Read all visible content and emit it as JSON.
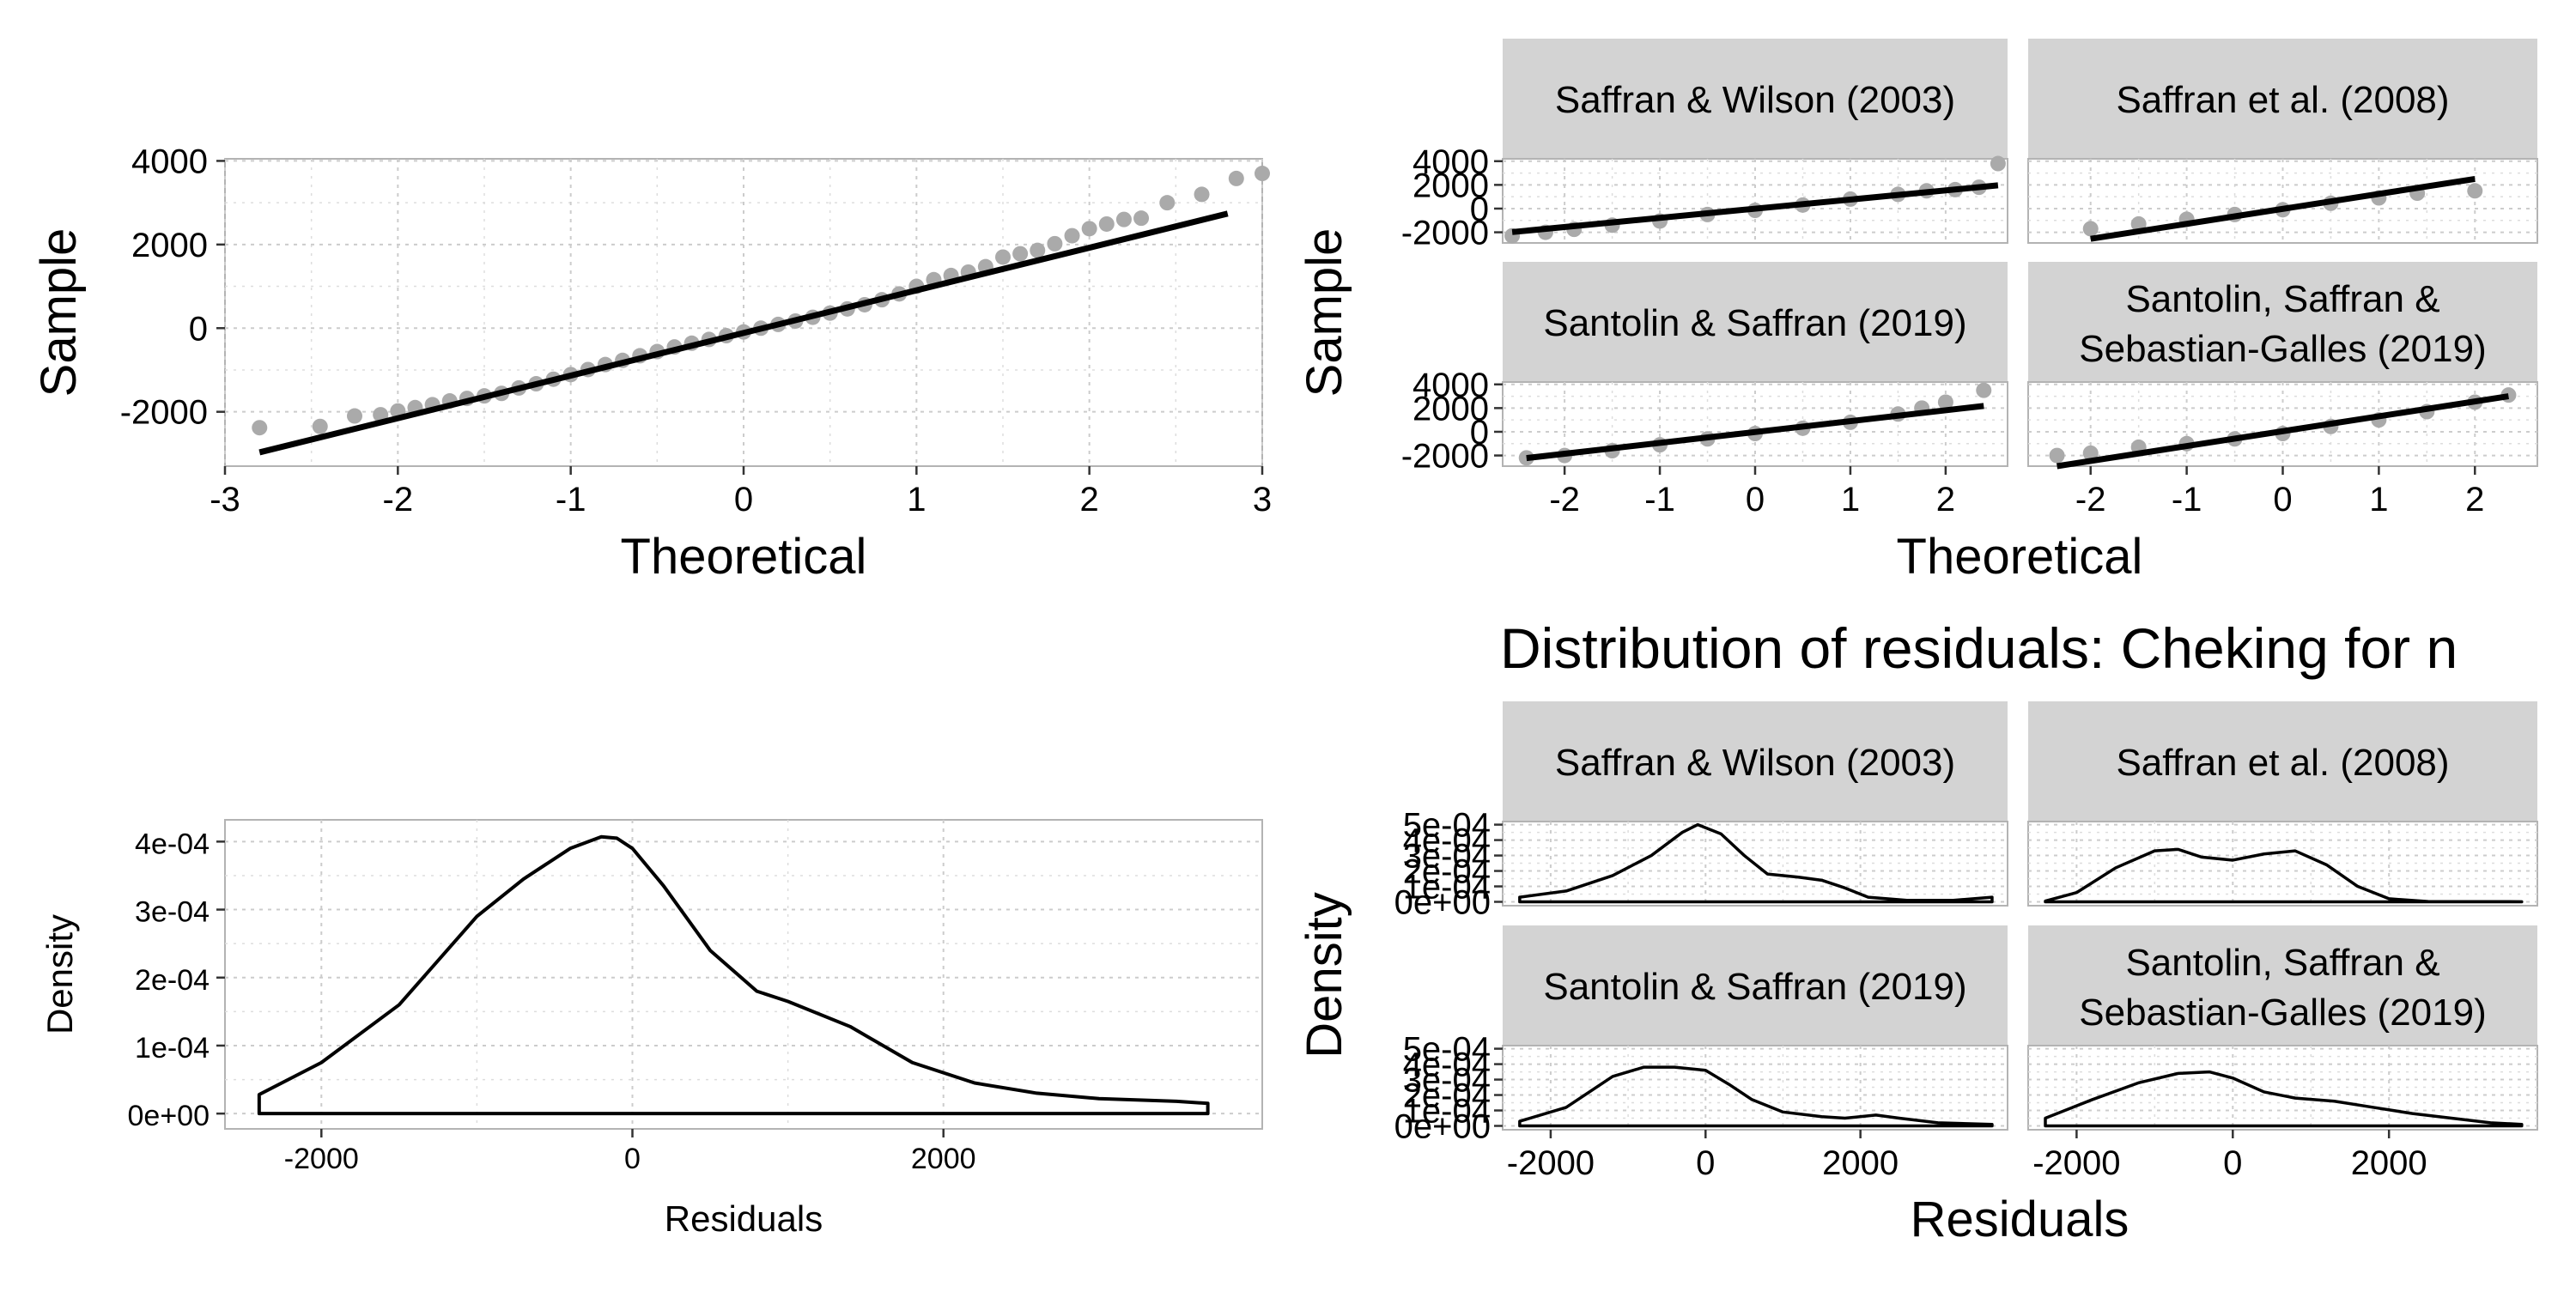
{
  "chart_data": [
    {
      "id": "qq_pooled",
      "type": "scatter",
      "xlabel": "Theoretical",
      "ylabel": "Sample",
      "xlim": [
        -3.0,
        3.0
      ],
      "ylim": [
        -3300,
        4050
      ],
      "xticks": [
        -3,
        -2,
        -1,
        0,
        1,
        2,
        3
      ],
      "yticks": [
        -2000,
        0,
        2000,
        4000
      ],
      "point_color": "#aaaaaa",
      "line_color": "#000000",
      "line": {
        "x": [
          -2.8,
          2.8
        ],
        "y": [
          -2970,
          2740
        ]
      },
      "points": [
        [
          -2.8,
          -2380
        ],
        [
          -2.45,
          -2350
        ],
        [
          -2.25,
          -2100
        ],
        [
          -2.1,
          -2070
        ],
        [
          -2.0,
          -1980
        ],
        [
          -1.9,
          -1900
        ],
        [
          -1.8,
          -1830
        ],
        [
          -1.7,
          -1740
        ],
        [
          -1.6,
          -1680
        ],
        [
          -1.5,
          -1620
        ],
        [
          -1.4,
          -1560
        ],
        [
          -1.3,
          -1430
        ],
        [
          -1.2,
          -1330
        ],
        [
          -1.1,
          -1220
        ],
        [
          -1.0,
          -1110
        ],
        [
          -0.9,
          -990
        ],
        [
          -0.8,
          -870
        ],
        [
          -0.7,
          -770
        ],
        [
          -0.6,
          -660
        ],
        [
          -0.5,
          -560
        ],
        [
          -0.4,
          -450
        ],
        [
          -0.3,
          -360
        ],
        [
          -0.2,
          -270
        ],
        [
          -0.1,
          -180
        ],
        [
          0.0,
          -90
        ],
        [
          0.1,
          0
        ],
        [
          0.2,
          90
        ],
        [
          0.3,
          170
        ],
        [
          0.4,
          260
        ],
        [
          0.5,
          360
        ],
        [
          0.6,
          460
        ],
        [
          0.7,
          560
        ],
        [
          0.8,
          680
        ],
        [
          0.9,
          820
        ],
        [
          1.0,
          1000
        ],
        [
          1.1,
          1160
        ],
        [
          1.2,
          1260
        ],
        [
          1.3,
          1340
        ],
        [
          1.4,
          1470
        ],
        [
          1.5,
          1700
        ],
        [
          1.6,
          1780
        ],
        [
          1.7,
          1860
        ],
        [
          1.8,
          2020
        ],
        [
          1.9,
          2210
        ],
        [
          2.0,
          2380
        ],
        [
          2.1,
          2490
        ],
        [
          2.2,
          2600
        ],
        [
          2.3,
          2630
        ],
        [
          2.45,
          3000
        ],
        [
          2.65,
          3200
        ],
        [
          2.85,
          3580
        ],
        [
          3.0,
          3700
        ]
      ]
    },
    {
      "id": "qq_faceted",
      "type": "scatter",
      "xlabel": "Theoretical",
      "ylabel": "Sample",
      "xlim": [
        -2.65,
        2.65
      ],
      "ylim": [
        -2900,
        4200
      ],
      "xticks": [
        -2,
        -1,
        0,
        1,
        2
      ],
      "yticks": [
        -2000,
        0,
        2000,
        4000
      ],
      "point_color": "#aaaaaa",
      "line_color": "#000000",
      "facets": [
        {
          "label": "Saffran & Wilson (2003)",
          "line": {
            "x": [
              -2.55,
              2.55
            ],
            "y": [
              -1980,
              1960
            ]
          },
          "points": [
            [
              -2.55,
              -2300
            ],
            [
              -2.2,
              -2000
            ],
            [
              -1.9,
              -1750
            ],
            [
              -1.5,
              -1400
            ],
            [
              -1.0,
              -1050
            ],
            [
              -0.5,
              -500
            ],
            [
              0,
              -150
            ],
            [
              0.5,
              300
            ],
            [
              1.0,
              800
            ],
            [
              1.5,
              1200
            ],
            [
              1.8,
              1500
            ],
            [
              2.1,
              1600
            ],
            [
              2.35,
              1800
            ],
            [
              2.55,
              3800
            ]
          ]
        },
        {
          "label": "Saffran et al. (2008)",
          "line": {
            "x": [
              -2.0,
              2.0
            ],
            "y": [
              -2550,
              2500
            ]
          },
          "points": [
            [
              -2.0,
              -1700
            ],
            [
              -1.5,
              -1300
            ],
            [
              -1.0,
              -900
            ],
            [
              -0.5,
              -500
            ],
            [
              0,
              -100
            ],
            [
              0.5,
              450
            ],
            [
              1.0,
              900
            ],
            [
              1.4,
              1300
            ],
            [
              2.0,
              1500
            ]
          ]
        },
        {
          "label": "Santolin & Saffran (2019)",
          "line": {
            "x": [
              -2.4,
              2.4
            ],
            "y": [
              -2220,
              2180
            ]
          },
          "points": [
            [
              -2.4,
              -2200
            ],
            [
              -2.0,
              -2000
            ],
            [
              -1.5,
              -1600
            ],
            [
              -1.0,
              -1100
            ],
            [
              -0.5,
              -600
            ],
            [
              0,
              -150
            ],
            [
              0.5,
              300
            ],
            [
              1.0,
              800
            ],
            [
              1.5,
              1500
            ],
            [
              1.75,
              2000
            ],
            [
              2.0,
              2500
            ],
            [
              2.4,
              3500
            ]
          ]
        },
        {
          "label": "Santolin, Saffran & Sebastian-Galles (2019)",
          "line": {
            "x": [
              -2.35,
              2.35
            ],
            "y": [
              -2900,
              3000
            ]
          },
          "points": [
            [
              -2.35,
              -2000
            ],
            [
              -2.0,
              -1800
            ],
            [
              -1.5,
              -1300
            ],
            [
              -1.0,
              -1000
            ],
            [
              -0.5,
              -600
            ],
            [
              0,
              -150
            ],
            [
              0.5,
              450
            ],
            [
              1.0,
              1000
            ],
            [
              1.5,
              1700
            ],
            [
              2.0,
              2500
            ],
            [
              2.35,
              3100
            ]
          ]
        }
      ]
    },
    {
      "id": "density_pooled",
      "type": "area",
      "xlabel": "Residuals",
      "ylabel": "Density",
      "xlim": [
        -2620,
        4050
      ],
      "ylim": [
        -2.25e-05,
        0.000432
      ],
      "xticks": [
        -2000,
        0,
        2000
      ],
      "yticks": [
        0,
        0.0001,
        0.0002,
        0.0003,
        0.0004
      ],
      "ytick_labels": [
        "0e+00",
        "1e-04",
        "2e-04",
        "3e-04",
        "4e-04"
      ],
      "x": [
        -2400,
        -2000,
        -1500,
        -1000,
        -700,
        -400,
        -200,
        -100,
        0,
        200,
        500,
        800,
        1000,
        1400,
        1800,
        2200,
        2600,
        3000,
        3500,
        3700
      ],
      "y": [
        2.8e-05,
        7.5e-05,
        0.00016,
        0.00029,
        0.000345,
        0.00039,
        0.000407,
        0.000405,
        0.00039,
        0.000335,
        0.00024,
        0.00018,
        0.000165,
        0.000128,
        7.5e-05,
        4.5e-05,
        3e-05,
        2.2e-05,
        1.8e-05,
        1.5e-05
      ]
    },
    {
      "id": "density_faceted",
      "type": "line",
      "title": "Distribution of residuals: Cheking for n",
      "xlabel": "Residuals",
      "ylabel": "Density",
      "xlim": [
        -2620,
        3900
      ],
      "ylim": [
        -2.5e-05,
        0.00052
      ],
      "xticks": [
        -2000,
        0,
        2000
      ],
      "yticks": [
        0,
        0.0001,
        0.0002,
        0.0003,
        0.0004,
        0.0005
      ],
      "ytick_labels": [
        "0e+00",
        "1e-04",
        "2e-04",
        "3e-04",
        "4e-04",
        "5e-04"
      ],
      "facets": [
        {
          "label": "Saffran & Wilson (2003)",
          "x": [
            -2400,
            -1800,
            -1200,
            -700,
            -300,
            -100,
            200,
            500,
            800,
            1200,
            1500,
            1800,
            2100,
            2600,
            3200,
            3700
          ],
          "y": [
            3e-05,
            7e-05,
            0.00017,
            0.0003,
            0.00045,
            0.0005,
            0.00044,
            0.0003,
            0.00018,
            0.00016,
            0.00014,
            9e-05,
            3e-05,
            1e-05,
            1e-05,
            3e-05
          ]
        },
        {
          "label": "Saffran et al. (2008)",
          "x": [
            -2400,
            -2000,
            -1500,
            -1000,
            -700,
            -400,
            0,
            400,
            800,
            1200,
            1600,
            2000,
            2500,
            3700
          ],
          "y": [
            5e-06,
            6e-05,
            0.00022,
            0.00033,
            0.00034,
            0.00029,
            0.00027,
            0.00031,
            0.00033,
            0.00024,
            0.0001,
            2e-05,
            2e-06,
            1e-06
          ]
        },
        {
          "label": "Santolin & Saffran (2019)",
          "x": [
            -2400,
            -1800,
            -1200,
            -800,
            -400,
            0,
            300,
            600,
            1000,
            1500,
            1800,
            2200,
            2500,
            3000,
            3700
          ],
          "y": [
            3e-05,
            0.00012,
            0.00032,
            0.00038,
            0.00038,
            0.00036,
            0.00027,
            0.00017,
            9e-05,
            6e-05,
            5e-05,
            7e-05,
            5e-05,
            2e-05,
            1e-05
          ]
        },
        {
          "label": "Santolin, Saffran & Sebastian-Galles (2019)",
          "x": [
            -2400,
            -1800,
            -1200,
            -700,
            -300,
            0,
            400,
            800,
            1300,
            1800,
            2300,
            2800,
            3300,
            3700
          ],
          "y": [
            5e-05,
            0.00017,
            0.00028,
            0.00034,
            0.00035,
            0.00031,
            0.00022,
            0.00018,
            0.00016,
            0.00012,
            8e-05,
            5e-05,
            2e-05,
            1e-05
          ]
        }
      ]
    }
  ]
}
